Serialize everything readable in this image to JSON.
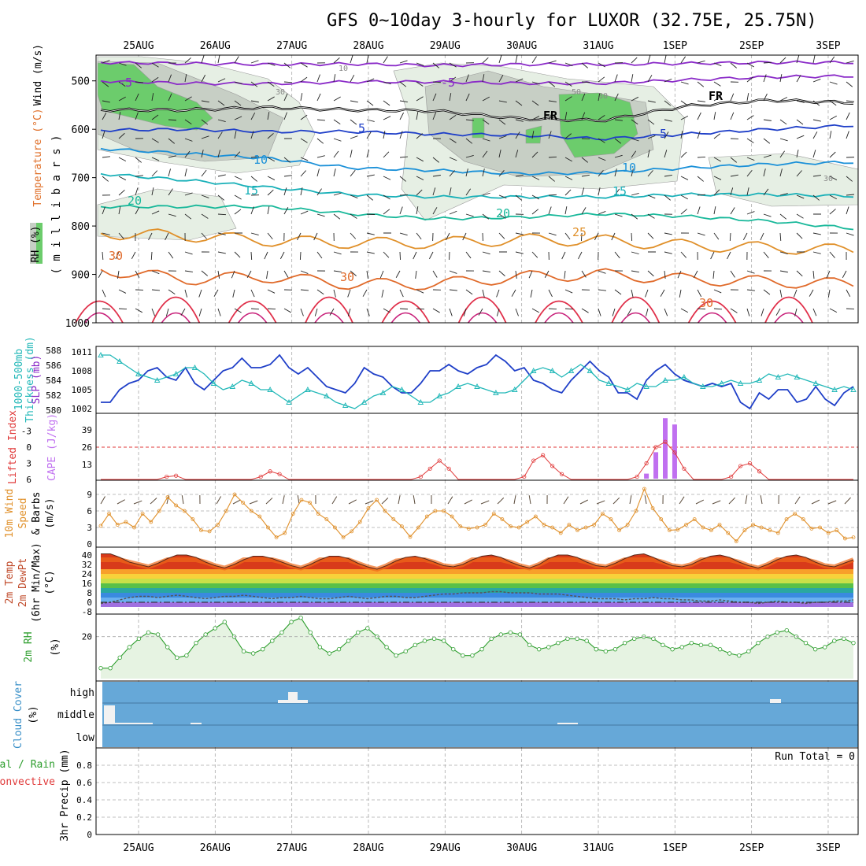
{
  "title": "GFS 0~10day 3-hourly for LUXOR (32.75E, 25.75N)",
  "dates": [
    "25AUG",
    "26AUG",
    "27AUG",
    "28AUG",
    "29AUG",
    "30AUG",
    "31AUG",
    "1SEP",
    "2SEP",
    "3SEP"
  ],
  "run_total": "Run Total = 0",
  "colors": {
    "frame": "#000000",
    "grid": "#aaaaaa",
    "slp": "#1f3fc8",
    "thick": "#22b8b8",
    "li": "#e03a3a",
    "cape": "#c070f0",
    "wind": "#e0902a",
    "barb": "#5a4a3a",
    "rh": "#2e9e2e",
    "rhfill": "#e6f3e2",
    "cloud": "#66a8d8",
    "cloudbar": "#f2f2f2",
    "rhcloud1": "#e6efe4",
    "rhcloud2": "#c7cfc5",
    "rhcloud3": "#6ccc6c"
  },
  "chart_data": [
    {
      "panel": "upper-air",
      "type": "heatmap",
      "ylabel_parts": [
        "RH (%)",
        "Temperature (°C)",
        "Wind (m/s)",
        "( m i l l i b a r s )"
      ],
      "yticks": [
        500,
        600,
        700,
        800,
        900,
        1000
      ],
      "ylim": [
        1000,
        450
      ],
      "isotherm_labels": [
        "-5",
        "-5",
        "FR",
        "FR",
        "FR",
        "-5",
        "-5",
        "5",
        "5",
        "10",
        "10",
        "15",
        "15",
        "20",
        "20",
        "25",
        "30",
        "30",
        "30",
        "10",
        "30",
        "30",
        "30",
        "50"
      ],
      "isotherms": [
        {
          "name": "-10",
          "color": "#8a2ac8",
          "p": [
            462,
            464,
            466,
            465,
            468,
            466,
            466,
            464,
            462,
            462
          ]
        },
        {
          "name": "-5",
          "color": "#8a2ac8",
          "p": [
            500,
            505,
            506,
            502,
            502,
            505,
            505,
            498,
            492,
            490
          ]
        },
        {
          "name": "FR",
          "color": "#000000",
          "p": [
            560,
            560,
            555,
            560,
            562,
            578,
            582,
            552,
            540,
            545
          ]
        },
        {
          "name": "5",
          "color": "#1f3fc8",
          "p": [
            602,
            600,
            605,
            605,
            610,
            612,
            620,
            610,
            600,
            592
          ]
        },
        {
          "name": "10",
          "color": "#1a90d8",
          "p": [
            640,
            650,
            660,
            680,
            685,
            692,
            690,
            680,
            672,
            668
          ]
        },
        {
          "name": "15",
          "color": "#18b0b8",
          "p": [
            692,
            705,
            720,
            735,
            740,
            740,
            740,
            735,
            735,
            738
          ]
        },
        {
          "name": "20",
          "color": "#18b89a",
          "p": [
            760,
            760,
            760,
            775,
            785,
            782,
            775,
            780,
            790,
            805
          ]
        },
        {
          "name": "25",
          "color": "#e0902a",
          "p": [
            815,
            820,
            830,
            835,
            835,
            828,
            830,
            840,
            845,
            850
          ]
        },
        {
          "name": "30",
          "color": "#e06a2a",
          "p": [
            890,
            910,
            905,
            920,
            920,
            905,
            900,
            910,
            915,
            920
          ]
        }
      ],
      "rh_contour_values": [
        10,
        30,
        50,
        70,
        90
      ]
    },
    {
      "panel": "slp-thickness",
      "type": "line",
      "ylabel_left": [
        "1000-500mb",
        "Thickness (dm)"
      ],
      "ylabel_right": "SLP (mb)",
      "left_ticks": [
        "588",
        "586",
        "584",
        "582",
        "580"
      ],
      "right_ticks": [
        "1011",
        "1008",
        "1005",
        "1002"
      ],
      "slp_lim": [
        1001.5,
        1011.5
      ],
      "series": [
        {
          "name": "SLP",
          "values": [
            1003,
            1003,
            1005,
            1006,
            1006.5,
            1008,
            1008.5,
            1007,
            1006.5,
            1008.5,
            1006,
            1005,
            1006.5,
            1008,
            1008.5,
            1010,
            1008.5,
            1008.5,
            1009,
            1010.5,
            1008.5,
            1007.5,
            1008.5,
            1007,
            1005.5,
            1005,
            1004.5,
            1006,
            1008.5,
            1007.5,
            1007,
            1005.5,
            1004.5,
            1004.5,
            1006,
            1008,
            1008,
            1009,
            1008,
            1007.5,
            1008.5,
            1009,
            1010.5,
            1009.5,
            1008,
            1008.5,
            1006.5,
            1006,
            1005,
            1004.5,
            1006.5,
            1008,
            1009.5,
            1008,
            1007,
            1004.5,
            1004.5,
            1003.5,
            1006.5,
            1008,
            1009,
            1007.5,
            1006.5,
            1006,
            1005.5,
            1006,
            1005.5,
            1006,
            1003,
            1002,
            1004.5,
            1003.5,
            1005,
            1005,
            1003,
            1003.5,
            1005.5,
            1003.5,
            1002.5,
            1004.5,
            1005.5
          ]
        },
        {
          "name": "Thickness",
          "values": [
            1010.5,
            1010.5,
            1009.5,
            1008.5,
            1007.5,
            1007,
            1006.5,
            1007,
            1007.5,
            1008.5,
            1008.5,
            1007.5,
            1006,
            1005,
            1005.5,
            1006.5,
            1006,
            1005,
            1005,
            1004,
            1003,
            1004,
            1005,
            1004.5,
            1004,
            1003,
            1002.5,
            1002,
            1003,
            1004,
            1004.5,
            1005.5,
            1005,
            1004,
            1003,
            1003,
            1004,
            1004.5,
            1005.5,
            1006,
            1005.5,
            1005,
            1004.5,
            1004.5,
            1005,
            1006.5,
            1008,
            1008.5,
            1008,
            1007,
            1008,
            1009,
            1008,
            1006.5,
            1006,
            1005.5,
            1005,
            1006,
            1005.5,
            1005.5,
            1006.5,
            1006.5,
            1007,
            1006,
            1005.5,
            1005.5,
            1006,
            1006.5,
            1006,
            1006,
            1006.5,
            1007.5,
            1007,
            1007.5,
            1007,
            1006.5,
            1006,
            1005.5,
            1005,
            1005.5,
            1005
          ]
        }
      ]
    },
    {
      "panel": "li-cape",
      "type": "bar",
      "ylabel_left": "Lifted Index",
      "ylabel_right": "CAPE (J/kg)",
      "li_ticks": [
        "-3",
        "0",
        "3",
        "6"
      ],
      "cape_ticks": [
        "39",
        "26",
        "13"
      ],
      "li_lim": [
        -6,
        6
      ],
      "li_values": [
        6,
        6,
        6,
        6,
        6,
        6,
        6,
        5.5,
        5.3,
        6,
        6,
        6,
        6,
        6,
        6,
        6,
        6,
        5.5,
        4.5,
        5,
        6,
        6,
        6,
        6,
        6,
        6,
        6,
        6,
        6,
        6,
        6,
        6,
        6,
        6,
        5.5,
        4,
        2.5,
        4,
        6,
        6,
        6,
        6,
        6,
        6,
        6,
        5.5,
        2.5,
        1.5,
        3.5,
        5,
        6,
        6,
        6,
        6,
        6,
        6,
        6,
        5.5,
        3,
        0,
        -1,
        1,
        4,
        6,
        6,
        6,
        6,
        5.5,
        3.5,
        3,
        4.5,
        6,
        6,
        6,
        6,
        6,
        6,
        6,
        6,
        6,
        6
      ],
      "cape_bars": [
        {
          "i": 58,
          "v": 4
        },
        {
          "i": 59,
          "v": 21
        },
        {
          "i": 60,
          "v": 48
        },
        {
          "i": 61,
          "v": 43
        }
      ]
    },
    {
      "panel": "wind10m",
      "type": "line",
      "ylabel": [
        "10m Wind",
        "Speed",
        "& Barbs",
        "(m/s)"
      ],
      "yticks": [
        "9",
        "6",
        "3",
        "0"
      ],
      "ylim": [
        0,
        10
      ],
      "values": [
        3.3,
        5.5,
        3.5,
        4,
        3,
        5.5,
        4,
        6,
        8.5,
        7,
        6,
        4.5,
        2.5,
        2.3,
        3.5,
        6,
        9,
        7.5,
        6,
        5,
        3,
        1.2,
        2,
        5.5,
        8,
        7.5,
        5.5,
        4.5,
        3,
        1.2,
        2.3,
        4,
        6.5,
        8,
        6,
        4.5,
        3.2,
        1.3,
        3,
        5,
        6,
        6,
        5,
        3.2,
        2.8,
        3,
        3.5,
        5.5,
        4.5,
        3.2,
        3,
        4,
        5,
        3.5,
        3,
        2,
        3.5,
        2.5,
        3,
        3.5,
        5.5,
        4.5,
        2.5,
        3.5,
        6,
        10,
        6.5,
        4.5,
        2.5,
        2.6,
        3.5,
        4.5,
        3,
        2.5,
        3.5,
        2,
        0.5,
        2.5,
        3.5,
        3,
        2.5,
        2,
        4.5,
        5.5,
        4.5,
        2.8,
        3,
        2,
        2.5,
        1,
        1.2
      ]
    },
    {
      "panel": "temp2m",
      "type": "area",
      "ylabel": [
        "2m Temp",
        "2m DewPt",
        "(6hr Min/Max)",
        "(°C)"
      ],
      "yticks": [
        "40",
        "32",
        "24",
        "16",
        "8",
        "0",
        "-8"
      ],
      "ylim": [
        -8,
        44
      ],
      "temp_values": [
        41,
        41,
        38,
        34,
        32,
        30,
        33,
        37,
        40,
        40,
        38,
        34,
        31,
        29,
        32,
        36,
        39,
        39,
        37,
        34,
        31,
        29,
        32,
        36,
        39,
        39,
        37,
        33,
        30,
        28,
        31,
        35,
        38,
        39,
        37,
        34,
        31,
        30,
        32,
        36,
        39,
        40,
        38,
        34,
        31,
        29,
        32,
        37,
        40,
        40,
        38,
        34,
        31,
        30,
        33,
        37,
        40,
        41,
        38,
        34,
        31,
        30,
        32,
        36,
        39,
        40,
        38,
        34,
        31,
        29,
        32,
        36,
        39,
        40,
        38,
        34,
        31,
        30,
        33,
        36
      ],
      "dew_values": [
        -1,
        0,
        2,
        4,
        5,
        5,
        4,
        5,
        6,
        5,
        4,
        3,
        4,
        5,
        5,
        6,
        5,
        4,
        3,
        4,
        4,
        5,
        4,
        3,
        3,
        4,
        5,
        4,
        3,
        4,
        5,
        5,
        4,
        4,
        5,
        6,
        7,
        7,
        8,
        8,
        8,
        9,
        9,
        8,
        8,
        8,
        7,
        7,
        7,
        6,
        5,
        4,
        3,
        3,
        3,
        2,
        3,
        3,
        4,
        3,
        3,
        2,
        2,
        1,
        1,
        2,
        1,
        0,
        0,
        -1,
        0,
        1,
        0,
        0,
        -1,
        0,
        0,
        1,
        1,
        2
      ]
    },
    {
      "panel": "rh2m",
      "type": "area",
      "ylabel": [
        "2m RH",
        "(%)"
      ],
      "yticks": [
        "20"
      ],
      "ylim": [
        0,
        30
      ],
      "values": [
        5,
        5,
        10,
        15,
        19,
        22,
        21,
        15,
        10,
        11,
        17,
        21,
        24,
        27,
        20,
        13,
        12,
        14,
        18,
        22,
        27,
        29,
        22,
        15,
        12,
        14,
        18,
        22,
        24,
        20,
        15,
        11,
        13,
        16,
        18,
        19,
        18,
        14,
        11,
        11,
        14,
        19,
        21,
        22,
        21,
        16,
        14,
        15,
        17,
        19,
        19,
        18,
        14,
        13,
        14,
        17,
        19,
        20,
        19,
        16,
        14,
        15,
        17,
        16,
        16,
        14,
        12,
        11,
        13,
        17,
        20,
        22,
        23,
        20,
        17,
        14,
        15,
        18,
        19,
        17
      ]
    },
    {
      "panel": "cloud",
      "type": "bar",
      "ylabel": [
        "Cloud Cover",
        "(%)"
      ],
      "levels": [
        "high",
        "middle",
        "low"
      ]
    },
    {
      "panel": "precip",
      "type": "bar",
      "ylabel_left": [
        "Total / Rain",
        "Convective"
      ],
      "ylabel_right": "3hr Precip (mm)",
      "yticks": [
        "0.8",
        "0.6",
        "0.4",
        "0.2",
        "0"
      ],
      "ylim": [
        0,
        1
      ],
      "values": [
        0
      ]
    }
  ]
}
